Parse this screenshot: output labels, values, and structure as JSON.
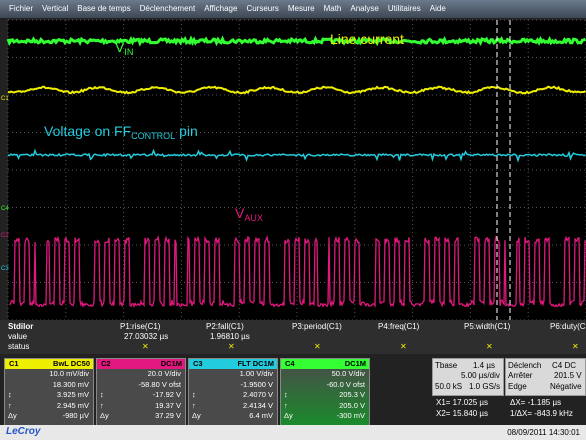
{
  "menu": [
    "Fichier",
    "Vertical",
    "Base de temps",
    "Déclenchement",
    "Affichage",
    "Curseurs",
    "Mesure",
    "Math",
    "Analyse",
    "Utilitaires",
    "Aide"
  ],
  "screen": {
    "channel_markers": [
      "C1",
      "C4",
      "C2",
      "C3"
    ],
    "annotations": [
      {
        "text": "V",
        "sub": "IN"
      },
      {
        "text": "Line current"
      },
      {
        "text": "Voltage on FF",
        "sub": "CONTROL",
        "after": " pin"
      },
      {
        "text": "V",
        "sub": "AUX"
      }
    ]
  },
  "measurements": {
    "row_labels": [
      "Stdilor",
      "value",
      "status"
    ],
    "params": [
      "P1:rise(C1)",
      "P2:fall(C1)",
      "P3:period(C1)",
      "P4:freq(C1)",
      "P5:width(C1)",
      "P6:duty(C1)"
    ],
    "values": [
      "27.03032 µs",
      "1.96810 µs"
    ],
    "status": [
      "✕",
      "✕",
      "✕",
      "✕",
      "✕",
      "✕"
    ]
  },
  "row_symbols": [
    "↕",
    "↑",
    "Δy"
  ],
  "channels": [
    {
      "name": "C1",
      "coupling": "BwL DC50",
      "lines": [
        "10.0 mV/div",
        "18.300 mV",
        "3.925 mV",
        "2.945 mV",
        "-980 µV"
      ]
    },
    {
      "name": "C2",
      "coupling": "DC1M",
      "lines": [
        "20.0 V/div",
        "-58.80 V ofst",
        "-17.92 V",
        "19.37 V",
        "37.29 V"
      ]
    },
    {
      "name": "C3",
      "coupling": "FLT DC1M",
      "lines": [
        "1.00 V/div",
        "-1.9500 V",
        "2.4070 V",
        "2.4134 V",
        "6.4 mV"
      ]
    },
    {
      "name": "C4",
      "coupling": "DC1M",
      "lines": [
        "50.0 V/div",
        "-60.0 V ofst",
        "205.3 V",
        "205.0 V",
        "-300 mV"
      ]
    }
  ],
  "timebase": {
    "title": "Tbase",
    "delay": "1.4 µs",
    "scale": "5.00 µs/div",
    "samples": "50.0 kS",
    "rate": "1.0 GS/s"
  },
  "trigger": {
    "title": "Déclench",
    "source": "C4 DC",
    "mode": "Arrêter",
    "level": "201.5 V",
    "type": "Edge",
    "slope": "Négative"
  },
  "cursors": [
    [
      "X1= 17.025 µs",
      "ΔX= -1.185 µs"
    ],
    [
      "X2= 15.840 µs",
      "1/ΔX= -843.9 kHz"
    ]
  ],
  "timestamp": "08/09/2011 14:30:01",
  "brand": "LeCroy"
}
